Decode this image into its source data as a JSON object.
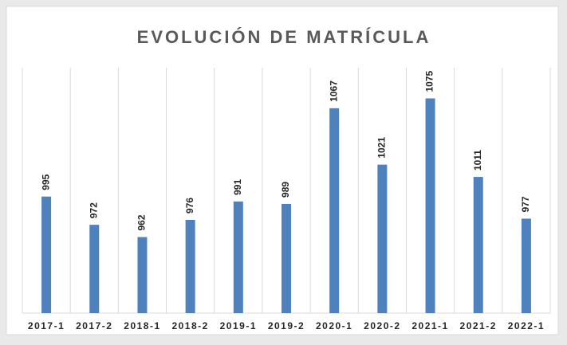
{
  "chart_data": {
    "type": "bar",
    "title": "EVOLUCIÓN DE MATRÍCULA",
    "categories": [
      "2017-1",
      "2017-2",
      "2018-1",
      "2018-2",
      "2019-1",
      "2019-2",
      "2020-1",
      "2020-2",
      "2021-1",
      "2021-2",
      "2022-1"
    ],
    "values": [
      995,
      972,
      962,
      976,
      991,
      989,
      1067,
      1021,
      1075,
      1011,
      977
    ],
    "color": "#4f81bd",
    "ylim": [
      900,
      1100
    ],
    "grid": false
  }
}
